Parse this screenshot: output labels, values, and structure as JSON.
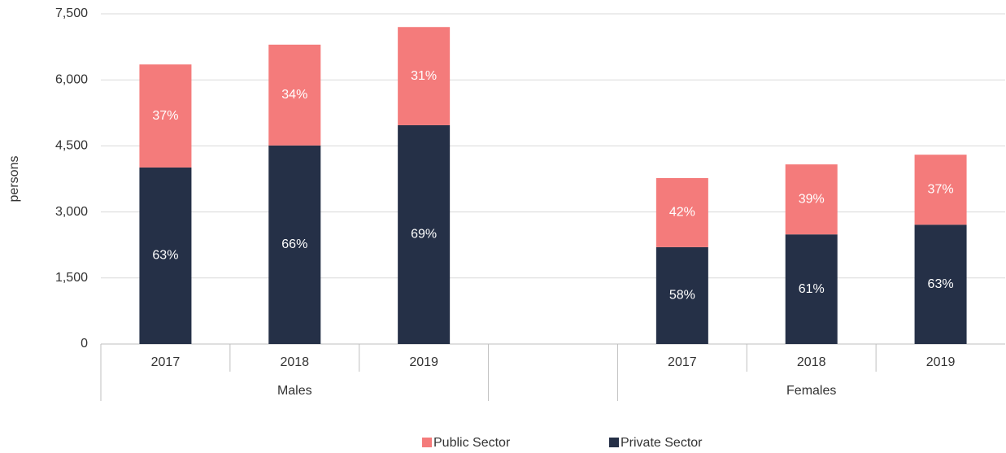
{
  "chart_data": {
    "type": "stacked_bar",
    "y_label": "persons",
    "categories": [
      "2017",
      "2018",
      "2019",
      null,
      "2017",
      "2018",
      "2019"
    ],
    "groups": [
      {
        "name": "Males",
        "count": 3
      },
      {
        "name": null,
        "count": 1
      },
      {
        "name": "Females",
        "count": 3
      }
    ],
    "series": [
      {
        "name": "Private Sector",
        "color": "#253047",
        "values": [
          4010,
          4510,
          4970,
          null,
          2200,
          2490,
          2710
        ],
        "value_labels": [
          "63%",
          "66%",
          "69%",
          null,
          "58%",
          "61%",
          "63%"
        ]
      },
      {
        "name": "Public Sector",
        "color": "#f47b7b",
        "values": [
          2340,
          2290,
          2230,
          null,
          1570,
          1590,
          1590
        ],
        "value_labels": [
          "37%",
          "34%",
          "31%",
          null,
          "42%",
          "39%",
          "37%"
        ]
      }
    ],
    "ylim": [
      0,
      7500
    ],
    "yticks": [
      0,
      {
        "value": 1500,
        "label": "1,500"
      },
      {
        "value": 3000,
        "label": "3,000"
      },
      {
        "value": 4500,
        "label": "4,500"
      },
      {
        "value": 6000,
        "label": "6,000"
      },
      {
        "value": 7500,
        "label": "7,500"
      }
    ],
    "grid": true,
    "legend": "bottom"
  }
}
